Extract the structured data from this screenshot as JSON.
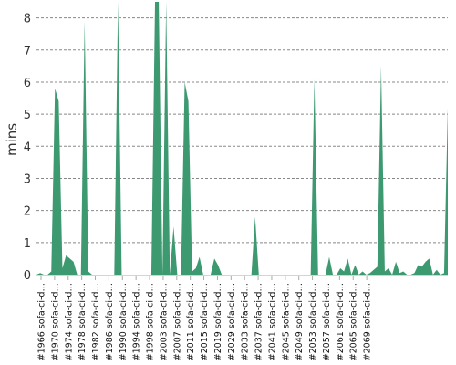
{
  "chart_data": {
    "type": "area",
    "title": "",
    "xlabel": "",
    "ylabel": "mins",
    "ylim": [
      0,
      8.5
    ],
    "yticks": [
      0,
      1,
      2,
      3,
      4,
      5,
      6,
      7,
      8
    ],
    "grid": true,
    "legend": "none",
    "color": "#3d9970",
    "x_tick_labels": [
      "#1966 sofa-ci-d…",
      "#1970 sofa-ci-d…",
      "#1974 sofa-ci-d…",
      "#1978 sofa-ci-d…",
      "#1982 sofa-ci-d…",
      "#1986 sofa-ci-d…",
      "#1990 sofa-ci-d…",
      "#1994 sofa-ci-d…",
      "#1998 sofa-ci-d…",
      "#2003 sofa-ci-d…",
      "#2007 sofa-ci-d…",
      "#2011 sofa-ci-d…",
      "#2015 sofa-ci-d…",
      "#2019 sofa-ci-d…",
      "#2029 sofa-ci-d…",
      "#2033 sofa-ci-d…",
      "#2037 sofa-ci-d…",
      "#2041 sofa-ci-d…",
      "#2045 sofa-ci-d…",
      "#2049 sofa-ci-d…",
      "#2053 sofa-ci-d…",
      "#2057 sofa-ci-d…",
      "#2061 sofa-ci-d…",
      "#2065 sofa-ci-d…",
      "#2069 sofa-ci-d…"
    ],
    "values": [
      0,
      0.05,
      0,
      0,
      0.1,
      5.8,
      5.4,
      0.2,
      0.6,
      0.5,
      0.4,
      0,
      0,
      7.9,
      0.1,
      0,
      0,
      0,
      0,
      0,
      0,
      0,
      8.5,
      0,
      0,
      0,
      0,
      0,
      0,
      0,
      0,
      0,
      8.5,
      8.5,
      0,
      8.5,
      0,
      1.5,
      0,
      0,
      6.0,
      5.4,
      0.1,
      0.2,
      0.55,
      0,
      0,
      0,
      0.5,
      0.3,
      0,
      0,
      0,
      0,
      0,
      0,
      0,
      0,
      0,
      1.8,
      0,
      0,
      0,
      0,
      0,
      0,
      0,
      0,
      0,
      0,
      0,
      0,
      0,
      0,
      0,
      6.1,
      0,
      0,
      0,
      0.55,
      0,
      0,
      0.2,
      0.1,
      0.5,
      0,
      0.3,
      0,
      0.1,
      0,
      0.05,
      0.15,
      0.25,
      6.5,
      0.1,
      0.2,
      0,
      0.4,
      0.05,
      0.1,
      0,
      0,
      0.05,
      0.3,
      0.25,
      0.4,
      0.5,
      0,
      0.15,
      0,
      0.05,
      5.2
    ]
  }
}
